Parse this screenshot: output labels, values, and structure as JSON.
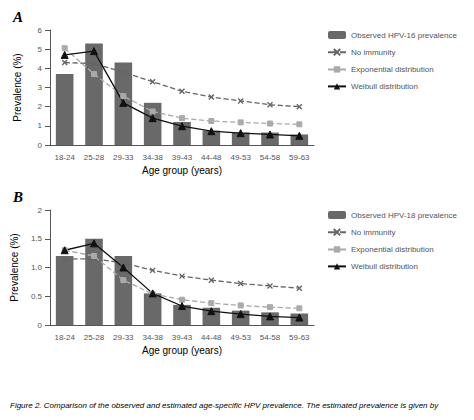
{
  "chart_data": [
    {
      "type": "bar",
      "title": "A",
      "xlabel": "Age group (years)",
      "ylabel": "Prevalence (%)",
      "categories": [
        "18-24",
        "25-28",
        "29-33",
        "34-38",
        "39-43",
        "44-48",
        "49-53",
        "54-58",
        "59-63"
      ],
      "ylim": [
        0,
        6
      ],
      "yticks": [
        0,
        1,
        2,
        3,
        4,
        5,
        6
      ],
      "grid": false,
      "legend": "right",
      "series": [
        {
          "name": "Observed HPV-16 prevalence",
          "type": "bar",
          "color": "#696969",
          "values": [
            3.7,
            5.3,
            4.3,
            2.2,
            1.2,
            0.75,
            0.65,
            0.65,
            0.55
          ]
        },
        {
          "name": "No immunity",
          "type": "line",
          "color": "#666666",
          "line_style": "dashed",
          "marker": "x",
          "values": [
            4.3,
            4.25,
            3.8,
            3.3,
            2.8,
            2.5,
            2.3,
            2.1,
            2.0
          ]
        },
        {
          "name": "Exponential distribution",
          "type": "line",
          "color": "#aaaaaa",
          "line_style": "dashed",
          "marker": "square",
          "values": [
            5.05,
            3.7,
            2.55,
            1.75,
            1.4,
            1.25,
            1.18,
            1.12,
            1.08
          ]
        },
        {
          "name": "Weibull distribution",
          "type": "line",
          "color": "#111111",
          "line_style": "solid",
          "marker": "triangle",
          "values": [
            4.7,
            4.9,
            2.2,
            1.4,
            0.98,
            0.72,
            0.62,
            0.55,
            0.48
          ]
        }
      ]
    },
    {
      "type": "bar",
      "title": "B",
      "xlabel": "Age group (years)",
      "ylabel": "Prevalence (%)",
      "categories": [
        "18-24",
        "25-28",
        "29-33",
        "34-38",
        "39-43",
        "44-48",
        "49-53",
        "54-58",
        "59-63"
      ],
      "ylim": [
        0,
        2
      ],
      "yticks": [
        0,
        0.5,
        {
          "value": 1,
          "label": "1.0"
        },
        1.5,
        2
      ],
      "grid": false,
      "legend": "right",
      "annotations": [
        "Figure 2. Comparison of the observed and estimated age-specific HPV prevalence. The estimated prevalence is given by"
      ],
      "series": [
        {
          "name": "Observed HPV-18 prevalence",
          "type": "bar",
          "color": "#696969",
          "values": [
            1.2,
            1.5,
            1.2,
            0.55,
            0.35,
            0.3,
            0.25,
            0.22,
            0.2
          ]
        },
        {
          "name": "No immunity",
          "type": "line",
          "color": "#666666",
          "line_style": "dashed",
          "marker": "x",
          "values": [
            1.15,
            1.15,
            1.08,
            0.95,
            0.85,
            0.78,
            0.72,
            0.68,
            0.64
          ]
        },
        {
          "name": "Exponential distribution",
          "type": "line",
          "color": "#aaaaaa",
          "line_style": "dashed",
          "marker": "square",
          "values": [
            1.3,
            1.2,
            0.78,
            0.54,
            0.44,
            0.38,
            0.34,
            0.31,
            0.29
          ]
        },
        {
          "name": "Weibull distribution",
          "type": "line",
          "color": "#111111",
          "line_style": "solid",
          "marker": "triangle",
          "values": [
            1.3,
            1.42,
            1.0,
            0.55,
            0.33,
            0.24,
            0.19,
            0.15,
            0.13
          ]
        }
      ]
    }
  ]
}
